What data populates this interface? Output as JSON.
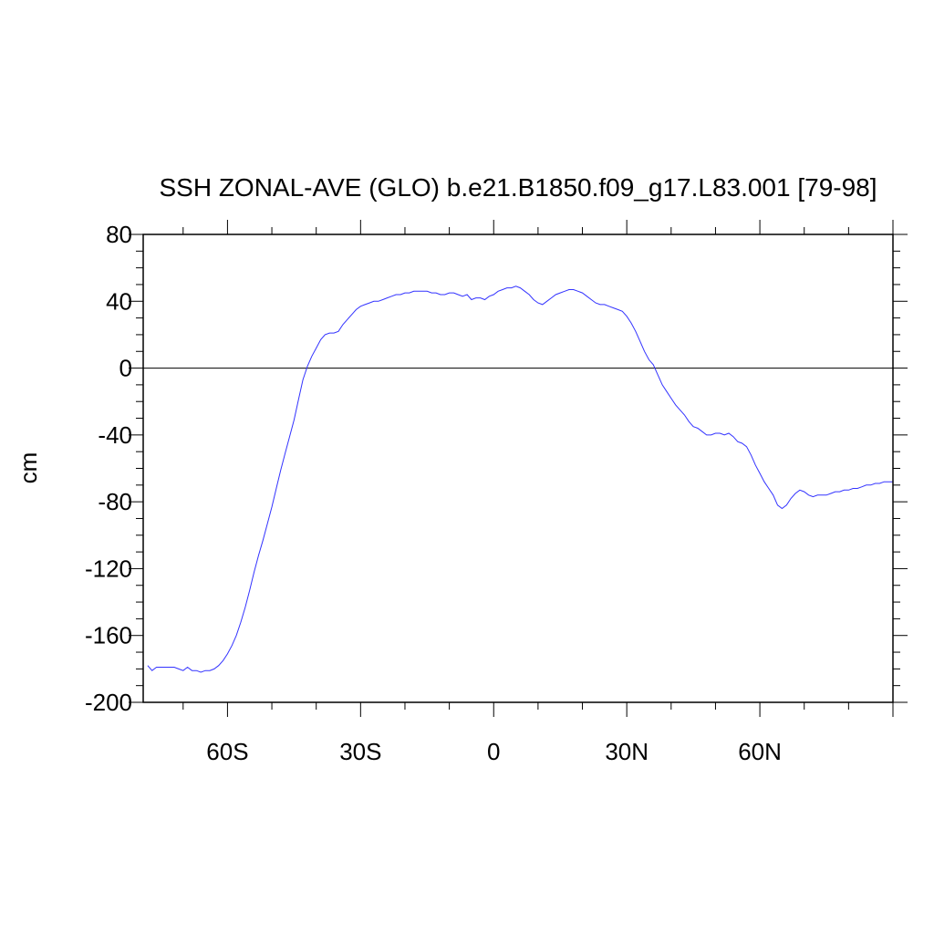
{
  "chart_data": {
    "type": "line",
    "title": "SSH ZONAL-AVE (GLO) b.e21.B1850.f09_g17.L83.001 [79-98]",
    "xlabel": "",
    "ylabel": "cm",
    "xlim": [
      -79,
      90
    ],
    "ylim": [
      -200,
      80
    ],
    "x_ticks": [
      {
        "value": -60,
        "label": "60S"
      },
      {
        "value": -30,
        "label": "30S"
      },
      {
        "value": 0,
        "label": "0"
      },
      {
        "value": 30,
        "label": "30N"
      },
      {
        "value": 60,
        "label": "60N"
      }
    ],
    "y_ticks": [
      {
        "value": 80,
        "label": "80"
      },
      {
        "value": 40,
        "label": "40"
      },
      {
        "value": 0,
        "label": "0"
      },
      {
        "value": -40,
        "label": "-40"
      },
      {
        "value": -80,
        "label": "-80"
      },
      {
        "value": -120,
        "label": "-120"
      },
      {
        "value": -160,
        "label": "-160"
      },
      {
        "value": -200,
        "label": "-200"
      }
    ],
    "reference_line": 0,
    "grid": false,
    "series": [
      {
        "color": "#3333ff",
        "x": [
          -78,
          -77,
          -76,
          -75,
          -74,
          -73,
          -72,
          -71,
          -70,
          -69,
          -68,
          -67,
          -66,
          -65,
          -64,
          -63,
          -62,
          -61,
          -60,
          -59,
          -58,
          -57,
          -56,
          -55,
          -54,
          -53,
          -52,
          -51,
          -50,
          -49,
          -48,
          -47,
          -46,
          -45,
          -44,
          -43,
          -42,
          -41,
          -40,
          -39,
          -38,
          -37,
          -36,
          -35,
          -34,
          -33,
          -32,
          -31,
          -30,
          -29,
          -28,
          -27,
          -26,
          -25,
          -24,
          -23,
          -22,
          -21,
          -20,
          -19,
          -18,
          -17,
          -16,
          -15,
          -14,
          -13,
          -12,
          -11,
          -10,
          -9,
          -8,
          -7,
          -6,
          -5,
          -4,
          -3,
          -2,
          -1,
          0,
          1,
          2,
          3,
          4,
          5,
          6,
          7,
          8,
          9,
          10,
          11,
          12,
          13,
          14,
          15,
          16,
          17,
          18,
          19,
          20,
          21,
          22,
          23,
          24,
          25,
          26,
          27,
          28,
          29,
          30,
          31,
          32,
          33,
          34,
          35,
          36,
          37,
          38,
          39,
          40,
          41,
          42,
          43,
          44,
          45,
          46,
          47,
          48,
          49,
          50,
          51,
          52,
          53,
          54,
          55,
          56,
          57,
          58,
          59,
          60,
          61,
          62,
          63,
          64,
          65,
          66,
          67,
          68,
          69,
          70,
          71,
          72,
          73,
          74,
          75,
          76,
          77,
          78,
          79,
          80,
          81,
          82,
          83,
          84,
          85,
          86,
          87,
          88,
          89,
          90
        ],
        "y": [
          -178,
          -181,
          -179,
          -179,
          -179,
          -179,
          -179,
          -180,
          -181,
          -179,
          -181,
          -181,
          -182,
          -181,
          -181,
          -180,
          -178,
          -175,
          -171,
          -166,
          -160,
          -152,
          -143,
          -133,
          -122,
          -112,
          -103,
          -93,
          -83,
          -72,
          -61,
          -51,
          -41,
          -31,
          -19,
          -7,
          1,
          7,
          12,
          17,
          20,
          21,
          21,
          22,
          26,
          29,
          32,
          35,
          37,
          38,
          39,
          40,
          40,
          41,
          42,
          43,
          44,
          44,
          45,
          45,
          46,
          46,
          46,
          46,
          45,
          45,
          44,
          44,
          45,
          45,
          44,
          43,
          44,
          41,
          42,
          42,
          41,
          43,
          44,
          46,
          47,
          48,
          48,
          49,
          48,
          46,
          44,
          41,
          39,
          38,
          40,
          42,
          44,
          45,
          46,
          47,
          47,
          46,
          45,
          43,
          41,
          39,
          38,
          38,
          37,
          36,
          35,
          34,
          31,
          27,
          22,
          16,
          10,
          5,
          2,
          -4,
          -10,
          -14,
          -18,
          -22,
          -25,
          -28,
          -32,
          -35,
          -36,
          -38,
          -40,
          -40,
          -39,
          -39,
          -40,
          -39,
          -41,
          -44,
          -45,
          -47,
          -52,
          -58,
          -63,
          -68,
          -72,
          -76,
          -82,
          -84,
          -82,
          -78,
          -75,
          -73,
          -74,
          -76,
          -77,
          -76,
          -76,
          -76,
          -75,
          -74,
          -74,
          -73,
          -73,
          -72,
          -72,
          -71,
          -70,
          -70,
          -69,
          -69,
          -68,
          -68,
          -68
        ]
      }
    ]
  }
}
